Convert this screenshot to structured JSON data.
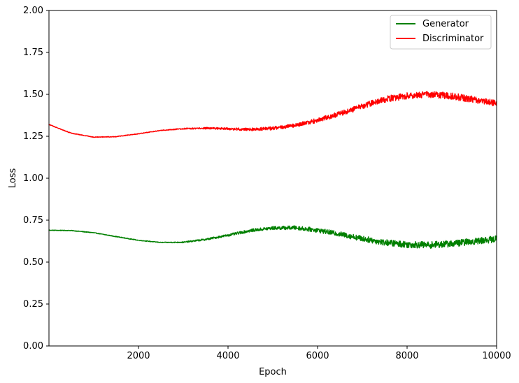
{
  "chart_data": {
    "type": "line",
    "title": "",
    "xlabel": "Epoch",
    "ylabel": "Loss",
    "xlim": [
      0,
      10000
    ],
    "ylim": [
      0,
      2
    ],
    "xticks": [
      2000,
      4000,
      6000,
      8000,
      10000
    ],
    "yticks": [
      0,
      0.25,
      0.5,
      0.75,
      1,
      1.25,
      1.5,
      1.75,
      2
    ],
    "xtick_labels": [
      "2000",
      "4000",
      "6000",
      "8000",
      "10000"
    ],
    "ytick_labels": [
      "0.00",
      "0.25",
      "0.50",
      "0.75",
      "1.00",
      "1.25",
      "1.50",
      "1.75",
      "2.00"
    ],
    "grid": false,
    "legend_position": "top-right",
    "series": [
      {
        "name": "Generator",
        "color": "#008000",
        "x": [
          0,
          500,
          1000,
          1500,
          2000,
          2500,
          3000,
          3500,
          4000,
          4500,
          5000,
          5500,
          6000,
          6500,
          7000,
          7500,
          8000,
          8500,
          9000,
          9500,
          10000
        ],
        "y": [
          0.69,
          0.688,
          0.675,
          0.652,
          0.63,
          0.617,
          0.618,
          0.635,
          0.66,
          0.688,
          0.703,
          0.705,
          0.69,
          0.667,
          0.64,
          0.617,
          0.605,
          0.602,
          0.61,
          0.624,
          0.638
        ]
      },
      {
        "name": "Discriminator",
        "color": "#ff0000",
        "x": [
          0,
          500,
          1000,
          1500,
          2000,
          2500,
          3000,
          3500,
          4000,
          4500,
          5000,
          5500,
          6000,
          6500,
          7000,
          7500,
          8000,
          8500,
          9000,
          9500,
          10000
        ],
        "y": [
          1.32,
          1.268,
          1.245,
          1.248,
          1.265,
          1.285,
          1.295,
          1.298,
          1.295,
          1.29,
          1.298,
          1.315,
          1.345,
          1.385,
          1.43,
          1.47,
          1.492,
          1.5,
          1.49,
          1.468,
          1.445
        ]
      }
    ]
  }
}
